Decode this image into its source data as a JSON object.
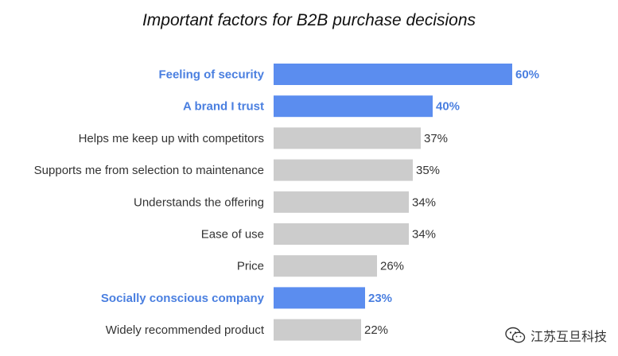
{
  "chart_data": {
    "type": "bar",
    "orientation": "horizontal",
    "title": "Important factors for B2B purchase decisions",
    "categories": [
      "Feeling of security",
      "A brand I trust",
      "Helps me keep up with competitors",
      "Supports me from selection to maintenance",
      "Understands the offering",
      "Ease of use",
      "Price",
      "Socially conscious company",
      "Widely recommended product"
    ],
    "values": [
      60,
      40,
      37,
      35,
      34,
      34,
      26,
      23,
      22
    ],
    "value_labels": [
      "60%",
      "40%",
      "37%",
      "35%",
      "34%",
      "34%",
      "26%",
      "23%",
      "22%"
    ],
    "highlighted": [
      true,
      true,
      false,
      false,
      false,
      false,
      false,
      true,
      false
    ],
    "xlim": [
      0,
      60
    ],
    "grid": false,
    "colors": {
      "highlight": "#5B8DEF",
      "default": "#CCCCCC",
      "highlight_text": "#4A7FE0",
      "default_text": "#333333"
    }
  },
  "watermark": {
    "text": "江苏互旦科技",
    "icon": "wechat-icon"
  }
}
